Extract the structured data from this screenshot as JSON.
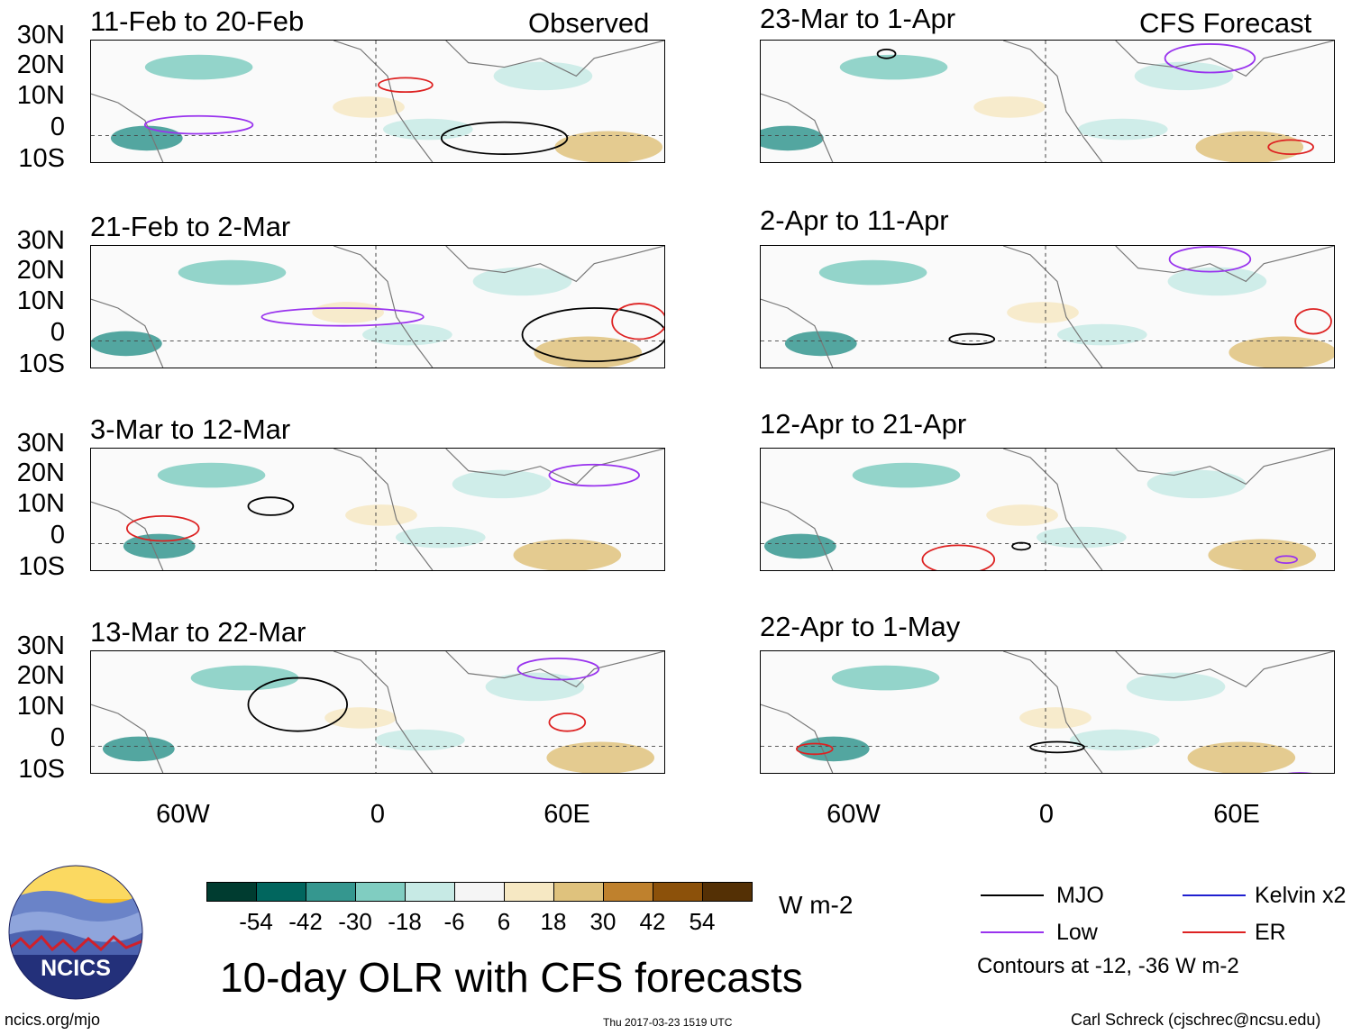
{
  "figure": {
    "title": "10-day OLR with CFS forecasts",
    "site": "ncics.org/mjo",
    "timestamp": "Thu 2017-03-23 1519 UTC",
    "author": "Carl Schreck (cjschrec@ncsu.edu)",
    "logo_text": "NCICS"
  },
  "column_labels": {
    "left": "Observed",
    "right": "CFS Forecast"
  },
  "panels_left": [
    {
      "title": "11-Feb to 20-Feb"
    },
    {
      "title": "21-Feb to 2-Mar"
    },
    {
      "title": "3-Mar to 12-Mar"
    },
    {
      "title": "13-Mar to 22-Mar"
    }
  ],
  "panels_right": [
    {
      "title": "23-Mar to 1-Apr"
    },
    {
      "title": "2-Apr to 11-Apr"
    },
    {
      "title": "12-Apr to 21-Apr"
    },
    {
      "title": "22-Apr to 1-May"
    }
  ],
  "lat_labels": [
    "30N",
    "20N",
    "10N",
    "0",
    "10S"
  ],
  "lon_labels": [
    "60W",
    "0",
    "60E"
  ],
  "colorbar": {
    "units": "W m-2",
    "labels": [
      "-54",
      "-42",
      "-30",
      "-18",
      "-6",
      "6",
      "18",
      "30",
      "42",
      "54"
    ],
    "colors": [
      "#003c30",
      "#01665e",
      "#35978f",
      "#80cdc1",
      "#c7eae5",
      "#f5f5f5",
      "#f6e8c3",
      "#dfc27d",
      "#bf812d",
      "#8c510a",
      "#543005"
    ]
  },
  "legend": {
    "items": [
      {
        "label": "MJO",
        "color": "#000000"
      },
      {
        "label": "Kelvin x2",
        "color": "#2020d0"
      },
      {
        "label": "Low",
        "color": "#9933ee"
      },
      {
        "label": "ER",
        "color": "#dd2222"
      }
    ],
    "note": "Contours at -12, -36 W m-2"
  }
}
